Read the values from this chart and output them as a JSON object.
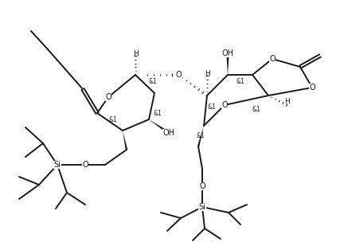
{
  "bg_color": "#ffffff",
  "line_color": "#1a1a1a",
  "lw": 1.4,
  "fs": 7.0,
  "fig_w": 4.29,
  "fig_h": 3.05,
  "dpi": 100
}
